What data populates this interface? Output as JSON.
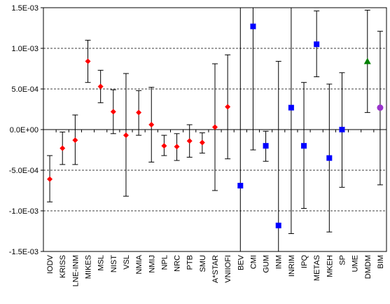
{
  "chart_data": {
    "type": "scatter",
    "title": "",
    "xlabel": "",
    "ylabel": "",
    "ylim": [
      -0.0015,
      0.0015
    ],
    "y_ticks": [
      {
        "value": 0.0015,
        "label": "1.5E-03"
      },
      {
        "value": 0.001,
        "label": "1.0E-03"
      },
      {
        "value": 0.0005,
        "label": "5.0E-04"
      },
      {
        "value": 0.0,
        "label": "0.0E+00"
      },
      {
        "value": -0.0005,
        "label": "-5.0E-04"
      },
      {
        "value": -0.001,
        "label": "-1.0E-03"
      },
      {
        "value": -0.0015,
        "label": "-1.5E-03"
      }
    ],
    "grid": {
      "horizontal": true,
      "style": "dashed",
      "vertical": false
    },
    "legend": "none",
    "categories": [
      "IODV",
      "KRISS",
      "LNE-INM",
      "MIKES",
      "MSL",
      "NIST",
      "VSL",
      "NMIA",
      "NMIJ",
      "NPL",
      "NRC",
      "PTB",
      "SMU",
      "A*STAR",
      "VNIIOFI",
      "BEV",
      "CMI",
      "GUM",
      "INM",
      "INRIM",
      "IPQ",
      "METAS",
      "MKEH",
      "SP",
      "UME",
      "DMDM",
      "BIM"
    ],
    "series": [
      {
        "marker": "diamond",
        "color": "#ff0000",
        "points": [
          {
            "category": "IODV",
            "y": -0.00061,
            "low": -0.00089,
            "high": -0.00032
          },
          {
            "category": "KRISS",
            "y": -0.00023,
            "low": -0.00043,
            "high": -3e-05
          },
          {
            "category": "LNE-INM",
            "y": -0.00013,
            "low": -0.00043,
            "high": 0.00018
          },
          {
            "category": "MIKES",
            "y": 0.00084,
            "low": 0.00058,
            "high": 0.0011
          },
          {
            "category": "MSL",
            "y": 0.00053,
            "low": 0.00033,
            "high": 0.00073
          },
          {
            "category": "NIST",
            "y": 0.00022,
            "low": -5e-05,
            "high": 0.00049
          },
          {
            "category": "VSL",
            "y": -7e-05,
            "low": -0.00082,
            "high": 0.00069
          },
          {
            "category": "NMIA",
            "y": 0.00021,
            "low": -7e-05,
            "high": 0.00048
          },
          {
            "category": "NMIJ",
            "y": 6e-05,
            "low": -0.0004,
            "high": 0.00052
          },
          {
            "category": "NPL",
            "y": -0.0002,
            "low": -0.00032,
            "high": -7e-05
          },
          {
            "category": "NRC",
            "y": -0.00021,
            "low": -0.00038,
            "high": -5e-05
          },
          {
            "category": "PTB",
            "y": -0.00014,
            "low": -0.00034,
            "high": 6e-05
          },
          {
            "category": "SMU",
            "y": -0.00016,
            "low": -0.00029,
            "high": -4e-05
          },
          {
            "category": "A*STAR",
            "y": 3e-05,
            "low": -0.00075,
            "high": 0.00081
          },
          {
            "category": "VNIIOFI",
            "y": 0.00028,
            "low": -0.00036,
            "high": 0.00092
          }
        ]
      },
      {
        "marker": "square",
        "color": "#0000ff",
        "points": [
          {
            "category": "BEV",
            "y": -0.00069,
            "low": -0.0015,
            "high": 0.0015
          },
          {
            "category": "CMI",
            "y": 0.00127,
            "low": -0.00025,
            "high": 0.0015
          },
          {
            "category": "GUM",
            "y": -0.0002,
            "low": -0.00039,
            "high": -2e-05
          },
          {
            "category": "INM",
            "y": -0.00118,
            "low": -0.0015,
            "high": 0.00084
          },
          {
            "category": "INRIM",
            "y": 0.00027,
            "low": -0.00128,
            "high": 0.0015
          },
          {
            "category": "IPQ",
            "y": -0.0002,
            "low": -0.00097,
            "high": 0.00058
          },
          {
            "category": "METAS",
            "y": 0.00105,
            "low": 0.00065,
            "high": 0.00146
          },
          {
            "category": "MKEH",
            "y": -0.00035,
            "low": -0.00126,
            "high": 0.00056
          },
          {
            "category": "SP",
            "y": 0.0,
            "low": -0.00071,
            "high": 0.0007
          }
        ]
      },
      {
        "marker": "triangle",
        "color": "#008000",
        "points": [
          {
            "category": "DMDM",
            "y": 0.00084,
            "low": 0.00021,
            "high": 0.00147
          }
        ]
      },
      {
        "marker": "circle",
        "color": "#9933cc",
        "points": [
          {
            "category": "BIM",
            "y": 0.00027,
            "low": -0.00068,
            "high": 0.00121
          }
        ]
      }
    ]
  }
}
